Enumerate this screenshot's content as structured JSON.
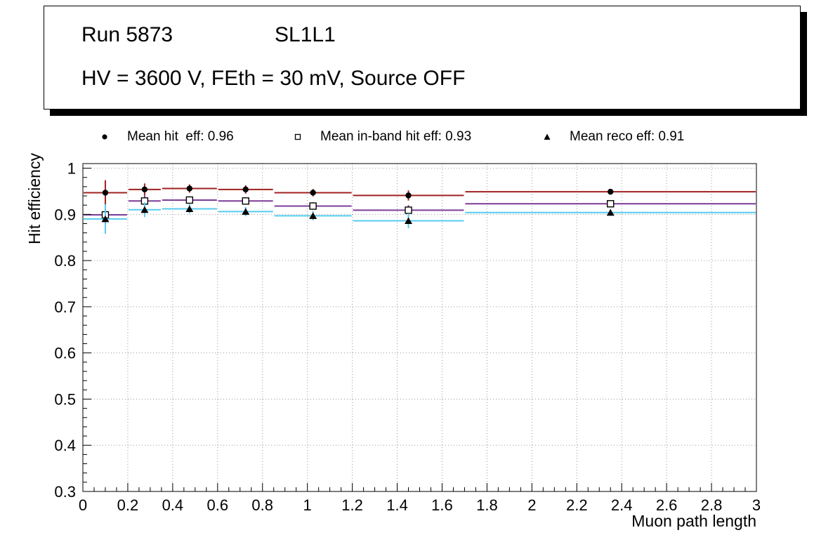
{
  "title_box": {
    "line1_left": "Run 5873",
    "line1_right": "SL1L1",
    "line2": "HV = 3600 V, FEth = 30 mV, Source OFF"
  },
  "legend": [
    {
      "marker": "filled-circle",
      "label": "Mean hit  eff: 0.96"
    },
    {
      "marker": "open-square",
      "label": "Mean in-band hit eff: 0.93"
    },
    {
      "marker": "filled-triangle",
      "label": "Mean reco eff: 0.91"
    }
  ],
  "chart_data": {
    "type": "scatter",
    "title": "",
    "xlabel": "Muon path length",
    "ylabel": "Hit efficiency",
    "xlim": [
      0,
      3
    ],
    "ylim": [
      0.3,
      1.01
    ],
    "grid": true,
    "x_major_ticks": [
      0,
      0.2,
      0.4,
      0.6,
      0.8,
      1,
      1.2,
      1.4,
      1.6,
      1.8,
      2,
      2.2,
      2.4,
      2.6,
      2.8,
      3
    ],
    "x_tick_labels": [
      "0",
      "0.2",
      "0.4",
      "0.6",
      "0.8",
      "1",
      "1.2",
      "1.4",
      "1.6",
      "1.8",
      "2",
      "2.2",
      "2.4",
      "2.6",
      "2.8",
      "3"
    ],
    "y_major_ticks": [
      0.3,
      0.4,
      0.5,
      0.6,
      0.7,
      0.8,
      0.9,
      1.0
    ],
    "y_tick_labels": [
      "0.3",
      "0.4",
      "0.5",
      "0.6",
      "0.7",
      "0.8",
      "0.9",
      "1"
    ],
    "x_minor_step": 0.05,
    "y_minor_step": 0.02,
    "bin_edges": [
      0,
      0.2,
      0.35,
      0.6,
      0.85,
      1.2,
      1.7,
      3.0
    ],
    "series": [
      {
        "name": "Mean hit eff",
        "mean": 0.96,
        "color": "#a02020",
        "marker": "filled-circle",
        "x": [
          0.1,
          0.275,
          0.475,
          0.725,
          1.025,
          1.45,
          2.35
        ],
        "y": [
          0.947,
          0.954,
          0.956,
          0.954,
          0.947,
          0.941,
          0.949
        ],
        "yerr": [
          0.027,
          0.013,
          0.009,
          0.009,
          0.008,
          0.011,
          0.006
        ]
      },
      {
        "name": "Mean in-band hit eff",
        "mean": 0.93,
        "color": "#7d3c98",
        "marker": "open-square",
        "x": [
          0.1,
          0.275,
          0.475,
          0.725,
          1.025,
          1.45,
          2.35
        ],
        "y": [
          0.899,
          0.929,
          0.931,
          0.929,
          0.918,
          0.909,
          0.923
        ],
        "yerr": [
          0.022,
          0.012,
          0.008,
          0.008,
          0.008,
          0.011,
          0.006
        ]
      },
      {
        "name": "Mean reco eff",
        "mean": 0.91,
        "color": "#55ccee",
        "marker": "filled-triangle",
        "x": [
          0.1,
          0.275,
          0.475,
          0.725,
          1.025,
          1.45,
          2.35
        ],
        "y": [
          0.89,
          0.91,
          0.912,
          0.906,
          0.897,
          0.886,
          0.904
        ],
        "yerr": [
          0.032,
          0.016,
          0.01,
          0.01,
          0.01,
          0.016,
          0.007
        ]
      }
    ]
  }
}
